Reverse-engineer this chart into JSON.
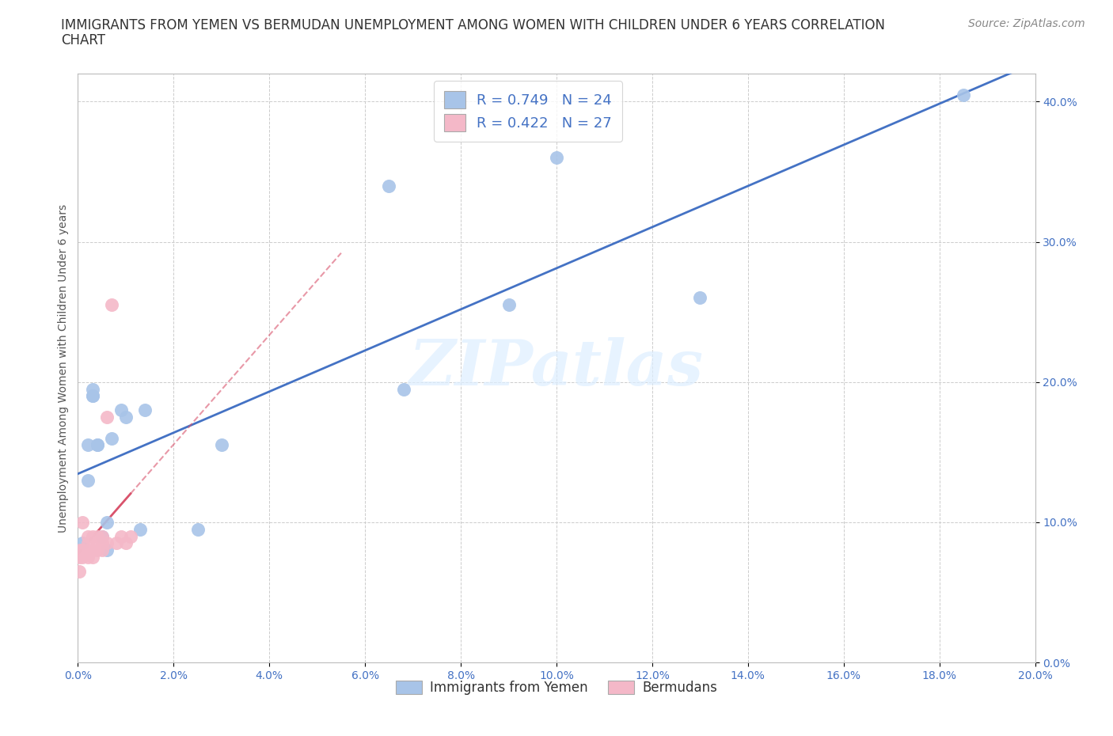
{
  "title_line1": "IMMIGRANTS FROM YEMEN VS BERMUDAN UNEMPLOYMENT AMONG WOMEN WITH CHILDREN UNDER 6 YEARS CORRELATION",
  "title_line2": "CHART",
  "source": "Source: ZipAtlas.com",
  "ylabel": "Unemployment Among Women with Children Under 6 years",
  "xlim": [
    0.0,
    0.2
  ],
  "ylim": [
    0.0,
    0.42
  ],
  "x_ticks": [
    0.0,
    0.02,
    0.04,
    0.06,
    0.08,
    0.1,
    0.12,
    0.14,
    0.16,
    0.18,
    0.2
  ],
  "y_ticks": [
    0.0,
    0.1,
    0.2,
    0.3,
    0.4
  ],
  "blue_scatter_color": "#a8c4e8",
  "pink_scatter_color": "#f4b8c8",
  "blue_line_color": "#4472c4",
  "pink_line_color": "#d9536c",
  "watermark": "ZIPatlas",
  "legend_R1": "R = 0.749",
  "legend_N1": "N = 24",
  "legend_R2": "R = 0.422",
  "legend_N2": "N = 27",
  "yemen_x": [
    0.001,
    0.002,
    0.002,
    0.003,
    0.003,
    0.003,
    0.004,
    0.004,
    0.005,
    0.006,
    0.006,
    0.007,
    0.009,
    0.01,
    0.013,
    0.014,
    0.025,
    0.03,
    0.065,
    0.068,
    0.09,
    0.1,
    0.13,
    0.185
  ],
  "yemen_y": [
    0.085,
    0.13,
    0.155,
    0.19,
    0.195,
    0.19,
    0.155,
    0.155,
    0.09,
    0.08,
    0.1,
    0.16,
    0.18,
    0.175,
    0.095,
    0.18,
    0.095,
    0.155,
    0.34,
    0.195,
    0.255,
    0.36,
    0.26,
    0.405
  ],
  "bermuda_x": [
    0.0003,
    0.0003,
    0.0005,
    0.001,
    0.001,
    0.001,
    0.001,
    0.002,
    0.002,
    0.002,
    0.002,
    0.003,
    0.003,
    0.003,
    0.004,
    0.004,
    0.004,
    0.005,
    0.005,
    0.005,
    0.006,
    0.006,
    0.007,
    0.008,
    0.009,
    0.01,
    0.011
  ],
  "bermuda_y": [
    0.065,
    0.075,
    0.08,
    0.08,
    0.075,
    0.08,
    0.1,
    0.075,
    0.08,
    0.085,
    0.09,
    0.075,
    0.08,
    0.09,
    0.08,
    0.085,
    0.09,
    0.08,
    0.085,
    0.09,
    0.085,
    0.175,
    0.255,
    0.085,
    0.09,
    0.085,
    0.09
  ],
  "title_fontsize": 12,
  "axis_label_fontsize": 10,
  "tick_fontsize": 10,
  "source_fontsize": 10,
  "legend_fontsize": 13
}
